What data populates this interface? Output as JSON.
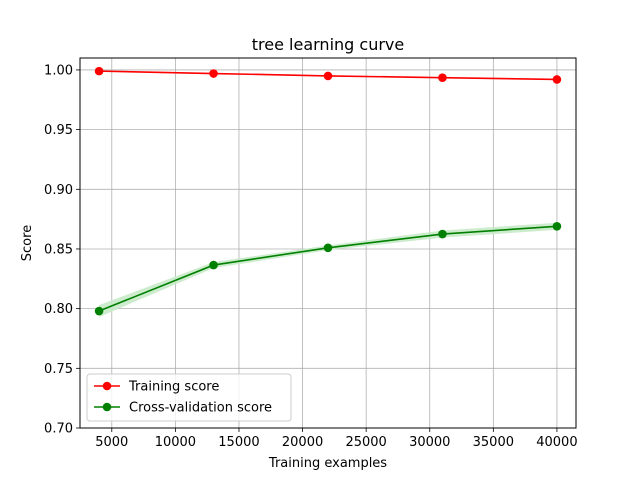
{
  "chart_data": {
    "type": "line",
    "title": "tree learning curve",
    "xlabel": "Training examples",
    "ylabel": "Score",
    "xlim": [
      2500,
      41500
    ],
    "ylim": [
      0.7,
      1.01
    ],
    "xticks": [
      5000,
      10000,
      15000,
      20000,
      25000,
      30000,
      35000,
      40000
    ],
    "xtick_labels": [
      "5000",
      "10000",
      "15000",
      "20000",
      "25000",
      "30000",
      "35000",
      "40000"
    ],
    "yticks": [
      0.7,
      0.75,
      0.8,
      0.85,
      0.9,
      0.95,
      1.0
    ],
    "ytick_labels": [
      "0.70",
      "0.75",
      "0.80",
      "0.85",
      "0.90",
      "0.95",
      "1.00"
    ],
    "grid": true,
    "legend_position": "lower-left",
    "x": [
      4000,
      13000,
      22000,
      31000,
      40000
    ],
    "series": [
      {
        "name": "Training score",
        "color": "#ff0000",
        "values": [
          0.999,
          0.997,
          0.995,
          0.9935,
          0.992
        ],
        "band_half_width": [
          0.0004,
          0.0004,
          0.0004,
          0.0004,
          0.0004
        ],
        "band_color": "#ffcccc"
      },
      {
        "name": "Cross-validation score",
        "color": "#008000",
        "values": [
          0.798,
          0.8365,
          0.851,
          0.8625,
          0.869
        ],
        "band_half_width": [
          0.005,
          0.0025,
          0.002,
          0.003,
          0.003
        ],
        "band_color": "#c8eac8"
      }
    ]
  }
}
